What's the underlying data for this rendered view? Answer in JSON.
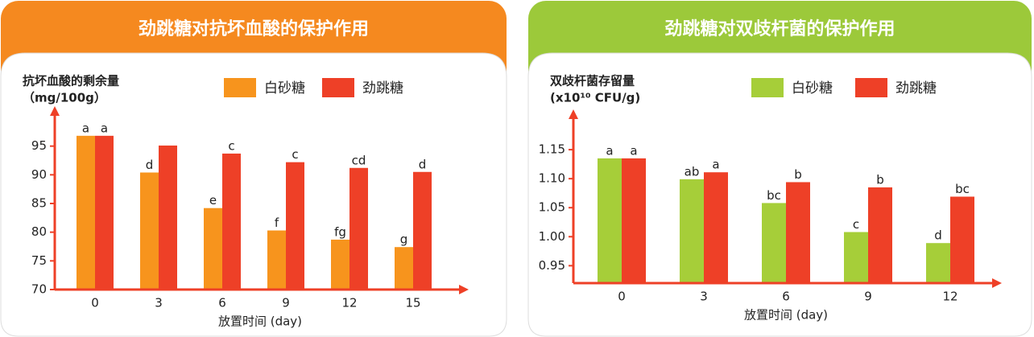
{
  "chart_data": [
    {
      "type": "bar",
      "title": "劲跳糖对抗坏血酸的保护作用",
      "header_color": "#f5891f",
      "y_label": [
        "抗坏血酸的剩余量",
        "（mg/100g）"
      ],
      "x_label": "放置时间 (day)",
      "categories": [
        "0",
        "3",
        "6",
        "9",
        "12",
        "15"
      ],
      "series": [
        {
          "name": "白砂糖",
          "color": "#f7941d",
          "values": [
            96.8,
            90.4,
            84.2,
            80.3,
            78.7,
            77.4
          ],
          "letters": [
            "a",
            "d",
            "e",
            "f",
            "fg",
            "g"
          ]
        },
        {
          "name": "劲跳糖",
          "color": "#ee4027",
          "values": [
            96.8,
            95.1,
            93.7,
            92.2,
            91.2,
            90.5
          ],
          "letters": [
            "a",
            null,
            "c",
            "c",
            "cd",
            "d"
          ]
        }
      ],
      "ylim": [
        70,
        100
      ],
      "yticks": [
        70,
        75,
        80,
        85,
        90,
        95
      ],
      "axis_color": "#ee4027"
    },
    {
      "type": "bar",
      "title": "劲跳糖对双歧杆菌的保护作用",
      "header_color": "#9cc93a",
      "y_label": [
        "双歧杆菌存留量",
        "(x10¹⁰ CFU/g)"
      ],
      "x_label": "放置时间 (day)",
      "categories": [
        "0",
        "3",
        "6",
        "9",
        "12"
      ],
      "series": [
        {
          "name": "白砂糖",
          "color": "#a6ce39",
          "values": [
            1.135,
            1.099,
            1.058,
            1.008,
            0.989
          ],
          "letters": [
            "a",
            "ab",
            "bc",
            "c",
            "d"
          ]
        },
        {
          "name": "劲跳糖",
          "color": "#ee4027",
          "values": [
            1.135,
            1.111,
            1.094,
            1.085,
            1.069
          ],
          "letters": [
            "a",
            "a",
            "b",
            "b",
            "bc"
          ]
        }
      ],
      "ylim": [
        0.92,
        1.2
      ],
      "yticks": [
        0.95,
        {
          "value": 1.0,
          "label": "1.00"
        },
        1.05,
        {
          "value": 1.1,
          "label": "1.10"
        },
        1.15
      ],
      "axis_color": "#ee4027"
    }
  ]
}
